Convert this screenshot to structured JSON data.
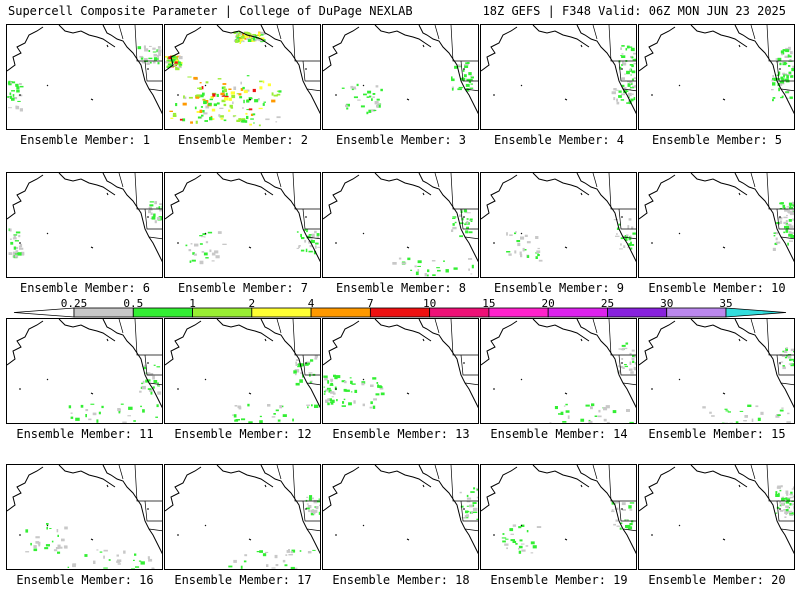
{
  "header": {
    "left_title": "Supercell Composite Parameter | College of DuPage NEXLAB",
    "right_title": "18Z GEFS | F348 Valid: 06Z MON JUN 23 2025"
  },
  "panel_label_prefix": "Ensemble Member: ",
  "members": [
    {
      "id": "1",
      "intensity": 0.3,
      "hotspots": [
        "coast-north",
        "west-edge"
      ]
    },
    {
      "id": "2",
      "intensity": 1.0,
      "hotspots": [
        "pacific-widespread",
        "alaska-north"
      ]
    },
    {
      "id": "3",
      "intensity": 0.4,
      "hotspots": [
        "mid-pacific",
        "west-coast"
      ]
    },
    {
      "id": "4",
      "intensity": 0.4,
      "hotspots": [
        "rockies",
        "southwest"
      ]
    },
    {
      "id": "5",
      "intensity": 0.4,
      "hotspots": [
        "california",
        "rockies"
      ]
    },
    {
      "id": "6",
      "intensity": 0.3,
      "hotspots": [
        "west-edge",
        "east-edge"
      ]
    },
    {
      "id": "7",
      "intensity": 0.3,
      "hotspots": [
        "mid-pacific",
        "southwest"
      ]
    },
    {
      "id": "8",
      "intensity": 0.3,
      "hotspots": [
        "west-coast",
        "south"
      ]
    },
    {
      "id": "9",
      "intensity": 0.3,
      "hotspots": [
        "california",
        "mid-pacific"
      ]
    },
    {
      "id": "10",
      "intensity": 0.3,
      "hotspots": [
        "california",
        "east-edge"
      ]
    },
    {
      "id": "11",
      "intensity": 0.3,
      "hotspots": [
        "california",
        "south"
      ]
    },
    {
      "id": "12",
      "intensity": 0.3,
      "hotspots": [
        "west-coast",
        "south"
      ]
    },
    {
      "id": "13",
      "intensity": 0.4,
      "hotspots": [
        "mid-pacific",
        "west-edge"
      ]
    },
    {
      "id": "14",
      "intensity": 0.3,
      "hotspots": [
        "rockies",
        "south"
      ]
    },
    {
      "id": "15",
      "intensity": 0.3,
      "hotspots": [
        "east-edge",
        "south"
      ]
    },
    {
      "id": "16",
      "intensity": 0.3,
      "hotspots": [
        "south",
        "mid-pacific"
      ]
    },
    {
      "id": "17",
      "intensity": 0.3,
      "hotspots": [
        "east-edge",
        "south"
      ]
    },
    {
      "id": "18",
      "intensity": 0.3,
      "hotspots": [
        "rockies"
      ]
    },
    {
      "id": "19",
      "intensity": 0.3,
      "hotspots": [
        "west-coast",
        "mid-pacific"
      ]
    },
    {
      "id": "20",
      "intensity": 0.3,
      "hotspots": [
        "rockies",
        "east-edge"
      ]
    }
  ],
  "colorbar": {
    "labels": [
      "0.25",
      "0.5",
      "1",
      "2",
      "4",
      "7",
      "10",
      "15",
      "20",
      "25",
      "30",
      "35"
    ],
    "colors": [
      "#ffffff",
      "#c8c8c8",
      "#33ee33",
      "#99ee33",
      "#ffff33",
      "#ff9900",
      "#ee1111",
      "#ee1177",
      "#ff22cc",
      "#dd22ee",
      "#8822dd",
      "#bb88ee",
      "#33dddd"
    ]
  }
}
